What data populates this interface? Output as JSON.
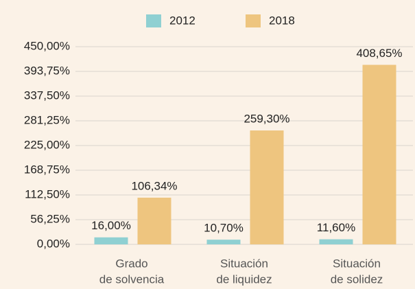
{
  "chart_data": {
    "type": "bar",
    "categories": [
      [
        "Grado",
        "de solvencia"
      ],
      [
        "Situación",
        "de liquidez"
      ],
      [
        "Situación",
        "de solidez"
      ]
    ],
    "series": [
      {
        "name": "2012",
        "color": "#8fd0d2",
        "values": [
          16.0,
          10.7,
          11.6
        ],
        "value_labels": [
          "16,00%",
          "10,70%",
          "11,60%"
        ]
      },
      {
        "name": "2018",
        "color": "#eec57f",
        "values": [
          106.34,
          259.3,
          408.65
        ],
        "value_labels": [
          "106,34%",
          "259,30%",
          "408,65%"
        ]
      }
    ],
    "ylim": [
      0,
      450
    ],
    "yticks": [
      {
        "value": 0,
        "label": "0,00%"
      },
      {
        "value": 56.25,
        "label": "56,25%"
      },
      {
        "value": 112.5,
        "label": "112,50%"
      },
      {
        "value": 168.75,
        "label": "168,75%"
      },
      {
        "value": 225,
        "label": "225,00%"
      },
      {
        "value": 281.25,
        "label": "281,25%"
      },
      {
        "value": 337.5,
        "label": "337,50%"
      },
      {
        "value": 393.75,
        "label": "393,75%"
      },
      {
        "value": 450,
        "label": "450,00%"
      }
    ],
    "grid": true,
    "legend": "top"
  }
}
